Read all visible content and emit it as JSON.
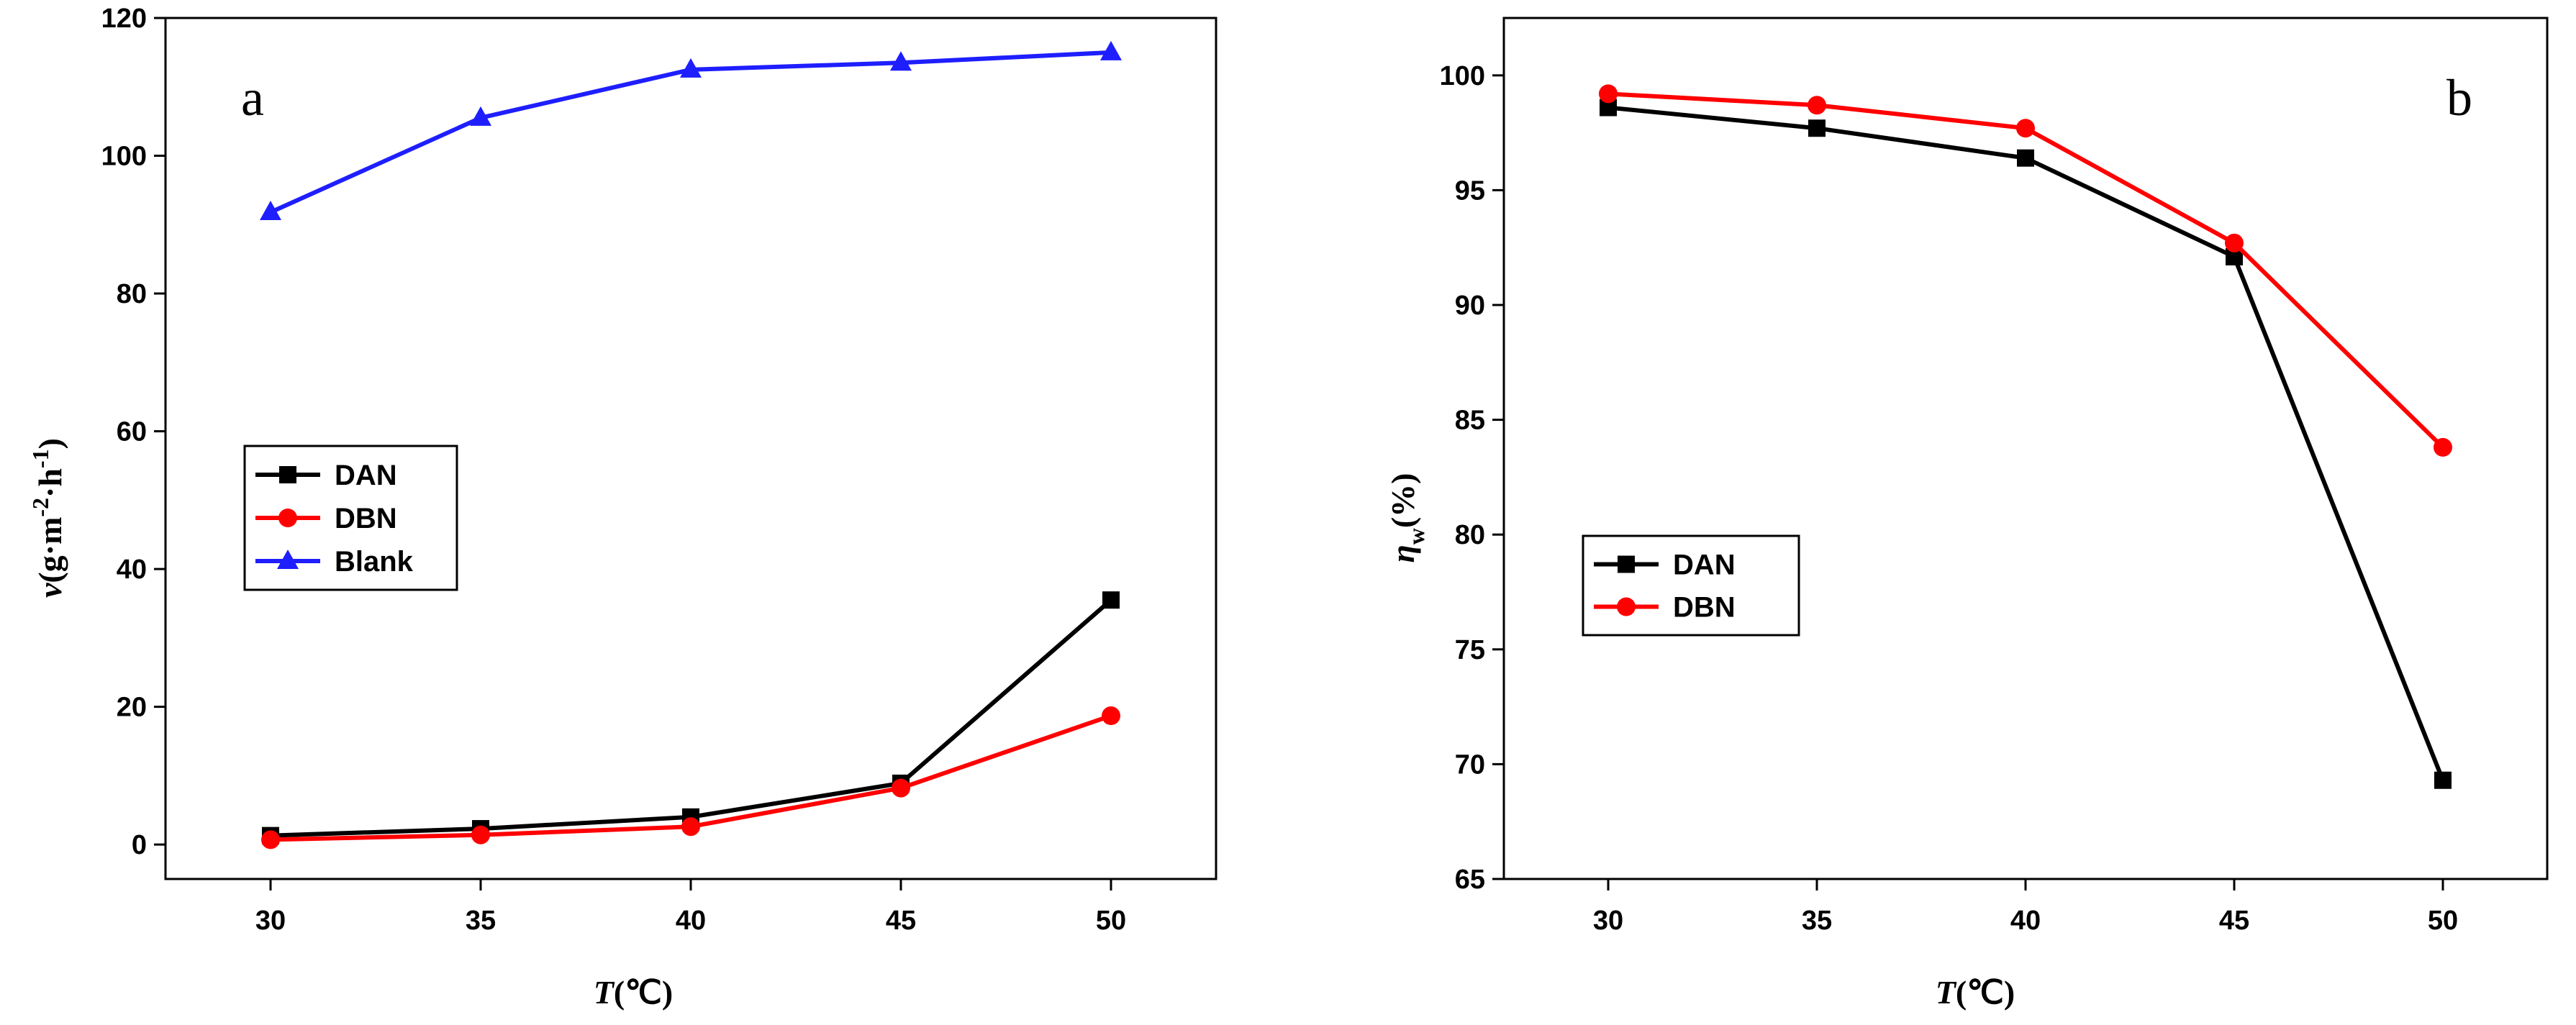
{
  "chart_data": [
    {
      "type": "line",
      "panel_label": "a",
      "xlabel_symbol": "T",
      "xlabel_unit": "(℃)",
      "ylabel_symbol": "v",
      "ylabel_unit_base": "(g·m",
      "ylabel_exp1": "-2",
      "ylabel_mid": "·h",
      "ylabel_exp2": "-1",
      "ylabel_close": ")",
      "x": [
        30,
        35,
        40,
        45,
        50
      ],
      "xticks": [
        "30",
        "35",
        "40",
        "45",
        "50"
      ],
      "xlim": [
        27.5,
        52.5
      ],
      "yticks": [
        "0",
        "20",
        "40",
        "60",
        "80",
        "100",
        "120"
      ],
      "ylim": [
        -5,
        120
      ],
      "legend_position": "center-left",
      "series": [
        {
          "name": "DAN",
          "color": "#000000",
          "marker": "square",
          "values": [
            1.3,
            2.3,
            4.0,
            8.9,
            35.5
          ]
        },
        {
          "name": "DBN",
          "color": "#ff0000",
          "marker": "circle",
          "values": [
            0.7,
            1.4,
            2.6,
            8.2,
            18.7
          ]
        },
        {
          "name": "Blank",
          "color": "#1e1eff",
          "marker": "triangle",
          "values": [
            91.8,
            105.5,
            112.5,
            113.5,
            115.0
          ]
        }
      ]
    },
    {
      "type": "line",
      "panel_label": "b",
      "xlabel_symbol": "T",
      "xlabel_unit": "(℃)",
      "ylabel_symbol": "η",
      "ylabel_sub": "w",
      "ylabel_unit": "(%)",
      "x": [
        30,
        35,
        40,
        45,
        50
      ],
      "xticks": [
        "30",
        "35",
        "40",
        "45",
        "50"
      ],
      "xlim": [
        27.5,
        52.5
      ],
      "yticks": [
        "65",
        "70",
        "75",
        "80",
        "85",
        "90",
        "95",
        "100"
      ],
      "ylim": [
        65,
        102.5
      ],
      "legend_position": "center-left",
      "series": [
        {
          "name": "DAN",
          "color": "#000000",
          "marker": "square",
          "values": [
            98.6,
            97.7,
            96.4,
            92.1,
            69.3
          ]
        },
        {
          "name": "DBN",
          "color": "#ff0000",
          "marker": "circle",
          "values": [
            99.2,
            98.7,
            97.7,
            92.7,
            83.8
          ]
        }
      ]
    }
  ]
}
